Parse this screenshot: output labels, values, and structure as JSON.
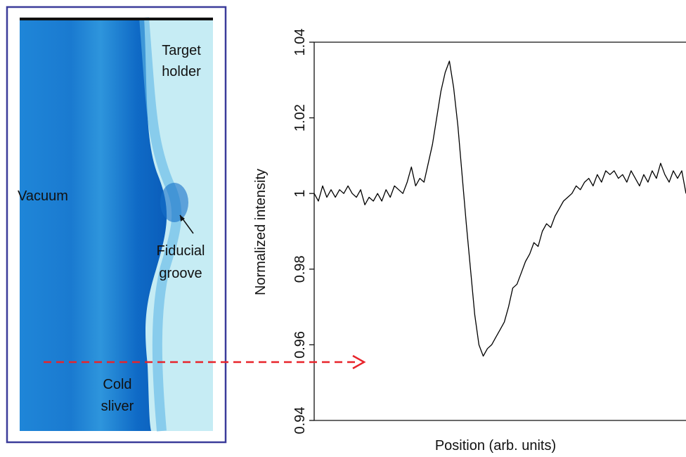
{
  "image_labels": [
    [
      "Target",
      "holder"
    ],
    [
      "Vacuum"
    ],
    [
      "Fiducial",
      "groove"
    ],
    [
      "Cold",
      "sliver"
    ]
  ],
  "chart_data": {
    "type": "line",
    "y_label": "Normalized intensity",
    "x_label": "Position (arb. units)",
    "color": "#000000",
    "ylim": [
      0.94,
      1.04
    ],
    "yticks": [
      0.94,
      0.96,
      0.98,
      1,
      1.02,
      1.04
    ],
    "values": [
      1.0,
      0.998,
      1.002,
      0.999,
      1.001,
      0.999,
      1.001,
      1.0,
      1.002,
      1.0,
      0.999,
      1.001,
      0.997,
      0.999,
      0.998,
      1.0,
      0.998,
      1.001,
      0.999,
      1.002,
      1.001,
      1.0,
      1.003,
      1.007,
      1.002,
      1.004,
      1.003,
      1.008,
      1.013,
      1.02,
      1.027,
      1.032,
      1.035,
      1.028,
      1.018,
      1.005,
      0.992,
      0.98,
      0.968,
      0.96,
      0.957,
      0.959,
      0.96,
      0.962,
      0.964,
      0.966,
      0.97,
      0.975,
      0.976,
      0.979,
      0.982,
      0.984,
      0.987,
      0.986,
      0.99,
      0.992,
      0.991,
      0.994,
      0.996,
      0.998,
      0.999,
      1.0,
      1.002,
      1.001,
      1.003,
      1.004,
      1.002,
      1.005,
      1.003,
      1.006,
      1.005,
      1.006,
      1.004,
      1.005,
      1.003,
      1.006,
      1.004,
      1.002,
      1.005,
      1.003,
      1.006,
      1.004,
      1.008,
      1.005,
      1.003,
      1.006,
      1.004,
      1.006,
      1.0
    ]
  }
}
